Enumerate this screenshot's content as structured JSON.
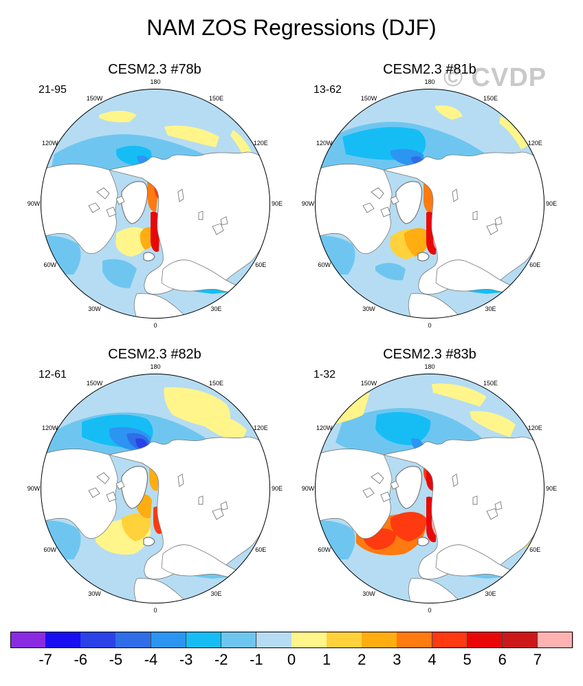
{
  "figure": {
    "title": "NAM ZOS Regressions (DJF)",
    "watermark": "© CVDP"
  },
  "panels": [
    {
      "title": "CESM2.3 #78b",
      "period": "21-95",
      "pattern": "p78"
    },
    {
      "title": "CESM2.3 #81b",
      "period": "13-62",
      "pattern": "p81"
    },
    {
      "title": "CESM2.3 #82b",
      "period": "12-61",
      "pattern": "p82"
    },
    {
      "title": "CESM2.3 #83b",
      "period": "1-32",
      "pattern": "p83"
    }
  ],
  "longitude_labels": {
    "top": "180",
    "top_right": "150E",
    "upper_right": "120E",
    "right": "90E",
    "lower_right": "60E",
    "bottom_right": "30E",
    "bottom": "0",
    "bottom_left": "30W",
    "lower_left": "60W",
    "left": "90W",
    "upper_left": "120W",
    "top_left": "150W"
  },
  "colorbar": {
    "labels": [
      "-7",
      "-6",
      "-5",
      "-4",
      "-3",
      "-2",
      "-1",
      "0",
      "1",
      "2",
      "3",
      "4",
      "5",
      "6",
      "7"
    ],
    "colors": [
      "#8a2be2",
      "#1a0ff0",
      "#2a42e6",
      "#2f6ee8",
      "#2c95f2",
      "#16bdf5",
      "#6ec6f0",
      "#b5dcf2",
      "#fff58a",
      "#ffd23c",
      "#ffad10",
      "#ff7a10",
      "#ff3a10",
      "#e80808",
      "#cc1818",
      "#ffb2b2"
    ]
  }
}
